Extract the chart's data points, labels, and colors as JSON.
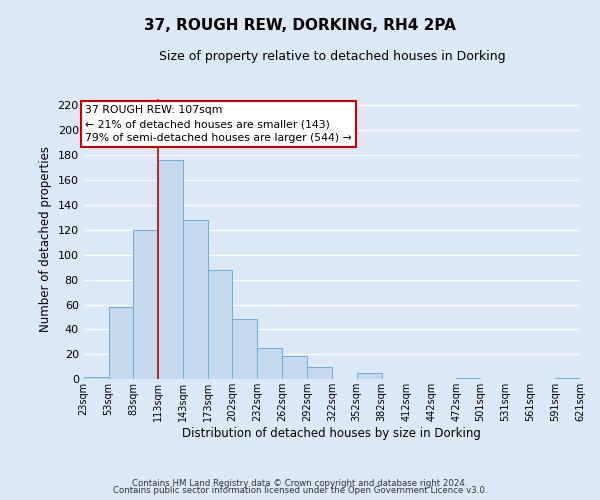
{
  "title": "37, ROUGH REW, DORKING, RH4 2PA",
  "subtitle": "Size of property relative to detached houses in Dorking",
  "xlabel": "Distribution of detached houses by size in Dorking",
  "ylabel": "Number of detached properties",
  "footer_line1": "Contains HM Land Registry data © Crown copyright and database right 2024.",
  "footer_line2": "Contains public sector information licensed under the Open Government Licence v3.0.",
  "bar_left_edges": [
    23,
    53,
    83,
    113,
    143,
    173,
    202,
    232,
    262,
    292,
    322,
    352,
    382,
    412,
    442,
    472,
    501,
    531,
    561,
    591
  ],
  "bar_widths": [
    30,
    30,
    30,
    30,
    30,
    29,
    30,
    30,
    30,
    30,
    30,
    30,
    30,
    30,
    30,
    29,
    30,
    30,
    30,
    30
  ],
  "bar_heights": [
    2,
    58,
    120,
    176,
    128,
    88,
    48,
    25,
    19,
    10,
    0,
    5,
    0,
    0,
    0,
    1,
    0,
    0,
    0,
    1
  ],
  "bar_color": "#c5d8ed",
  "bar_edge_color": "#6aaed6",
  "tick_labels": [
    "23sqm",
    "53sqm",
    "83sqm",
    "113sqm",
    "143sqm",
    "173sqm",
    "202sqm",
    "232sqm",
    "262sqm",
    "292sqm",
    "322sqm",
    "352sqm",
    "382sqm",
    "412sqm",
    "442sqm",
    "472sqm",
    "501sqm",
    "531sqm",
    "561sqm",
    "591sqm",
    "621sqm"
  ],
  "ylim": [
    0,
    225
  ],
  "yticks": [
    0,
    20,
    40,
    60,
    80,
    100,
    120,
    140,
    160,
    180,
    200,
    220
  ],
  "vline_x": 113,
  "vline_color": "#cc0000",
  "annotation_title": "37 ROUGH REW: 107sqm",
  "annotation_line1": "← 21% of detached houses are smaller (143)",
  "annotation_line2": "79% of semi-detached houses are larger (544) →",
  "annotation_box_color": "#ffffff",
  "annotation_box_edge_color": "#cc0000",
  "bg_color": "#dce8f5",
  "grid_color": "#ffffff"
}
